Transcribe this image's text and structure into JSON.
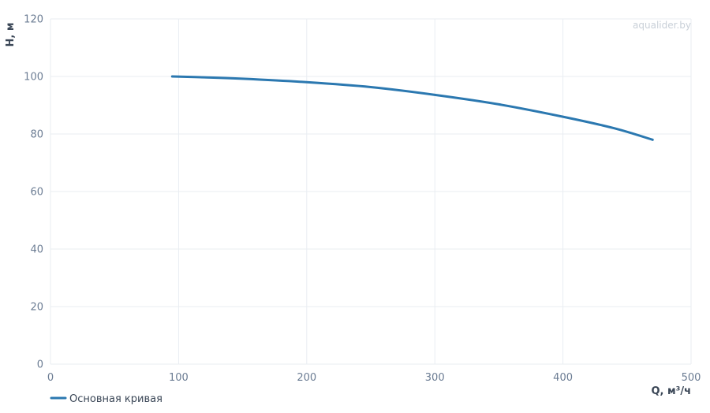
{
  "watermark": "aqualider.by",
  "chart_data": {
    "type": "line",
    "xlabel": "Q, м³/ч",
    "ylabel": "H, м",
    "xlim": [
      0,
      500
    ],
    "ylim": [
      0,
      120
    ],
    "x_ticks": [
      0,
      100,
      200,
      300,
      400,
      500
    ],
    "y_ticks": [
      0,
      20,
      40,
      60,
      80,
      100,
      120
    ],
    "grid": true,
    "legend_position": "bottom-left",
    "series": [
      {
        "name": "Основная кривая",
        "color": "#2b78b0",
        "x": [
          95,
          120,
          150,
          200,
          250,
          300,
          350,
          400,
          440,
          470
        ],
        "y": [
          100,
          99.7,
          99.2,
          98,
          96.3,
          93.6,
          90.3,
          86,
          82,
          78
        ]
      }
    ]
  }
}
